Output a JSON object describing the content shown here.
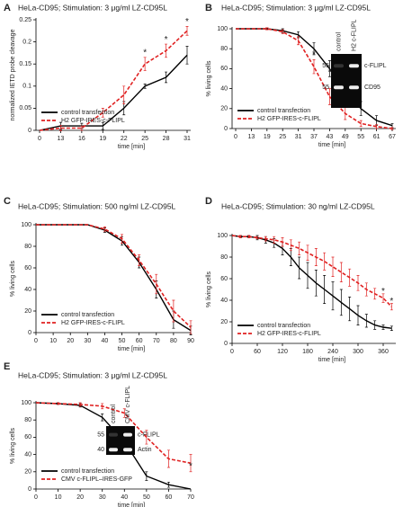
{
  "chart_data": [
    {
      "panel": "A",
      "type": "line",
      "title": "HeLa-CD95; Stimulation: 3 μg/ml LZ-CD95L",
      "xlabel": "time [min]",
      "ylabel": "normalized IETD probe cleavage",
      "categories": [
        "0",
        "13",
        "16",
        "19",
        "22",
        "25",
        "28",
        "31"
      ],
      "ylim": [
        0,
        0.25
      ],
      "yticks": [
        0,
        0.05,
        0.1,
        0.15,
        0.2,
        0.25
      ],
      "legend": "lower left",
      "series": [
        {
          "name": "control transfection",
          "color": "#000000",
          "dash": false,
          "values": [
            0,
            0.01,
            0.01,
            0.01,
            0.05,
            0.1,
            0.12,
            0.17
          ],
          "errors": [
            0,
            0.008,
            0.006,
            0.008,
            0.015,
            0.005,
            0.012,
            0.02
          ]
        },
        {
          "name": "H2 GFP-IRES-c-FLIPL",
          "color": "#e02020",
          "dash": true,
          "values": [
            0,
            0.005,
            0.005,
            0.04,
            0.08,
            0.15,
            0.18,
            0.225
          ],
          "errors": [
            0,
            0.006,
            0.005,
            0.01,
            0.02,
            0.015,
            0.015,
            0.01
          ]
        }
      ],
      "annotations": [
        {
          "text": "*",
          "x": "25",
          "y": 0.175
        },
        {
          "text": "*",
          "x": "28",
          "y": 0.205
        },
        {
          "text": "*",
          "x": "31",
          "y": 0.245
        }
      ]
    },
    {
      "panel": "B",
      "type": "line",
      "title": "HeLa-CD95; Stimulation: 3 μg/ml LZ-CD95L",
      "xlabel": "time [min]",
      "ylabel": "% living cells",
      "categories": [
        "0",
        "13",
        "19",
        "25",
        "31",
        "37",
        "43",
        "49",
        "55",
        "61",
        "67"
      ],
      "ylim": [
        0,
        100
      ],
      "yticks": [
        0,
        20,
        40,
        60,
        80,
        100
      ],
      "legend": "lower left",
      "series": [
        {
          "name": "control transfection",
          "color": "#000000",
          "dash": false,
          "values": [
            100,
            100,
            100,
            98,
            94,
            80,
            60,
            38,
            20,
            8,
            3
          ],
          "errors": [
            0,
            0,
            1,
            2,
            3,
            6,
            8,
            8,
            7,
            5,
            2
          ]
        },
        {
          "name": "H2 GFP-IRES-c-FLIPL",
          "color": "#e02020",
          "dash": true,
          "values": [
            100,
            100,
            100,
            97,
            88,
            62,
            32,
            15,
            5,
            2,
            0
          ],
          "errors": [
            0,
            0,
            1,
            2,
            4,
            7,
            8,
            6,
            3,
            2,
            1
          ]
        }
      ],
      "annotations": [
        {
          "text": "*",
          "x": "37",
          "y": 74
        },
        {
          "text": "*",
          "x": "43",
          "y": 56
        }
      ],
      "inset": {
        "lanes": [
          "control",
          "H2 c-FLIPL"
        ],
        "rows": [
          {
            "marker": "55",
            "label": "c-FLIPL"
          },
          {
            "marker": "55",
            "label": "CD95"
          }
        ]
      }
    },
    {
      "panel": "C",
      "type": "line",
      "title": "HeLa-CD95; Stimulation: 500 ng/ml LZ-CD95L",
      "xlabel": "time [min]",
      "ylabel": "% living cells",
      "x": [
        0,
        10,
        20,
        30,
        40,
        50,
        60,
        70,
        80,
        90
      ],
      "xlim": [
        0,
        90
      ],
      "xticks": [
        0,
        10,
        20,
        30,
        40,
        50,
        60,
        70,
        80,
        90
      ],
      "ylim": [
        0,
        100
      ],
      "yticks": [
        0,
        20,
        40,
        60,
        80,
        100
      ],
      "legend": "lower left",
      "series": [
        {
          "name": "control transfection",
          "color": "#000000",
          "dash": false,
          "values": [
            100,
            100,
            100,
            100,
            95,
            85,
            65,
            40,
            12,
            2
          ],
          "errors": [
            0,
            0,
            0,
            0,
            2,
            4,
            5,
            8,
            8,
            4
          ]
        },
        {
          "name": "H2 GFP-IRES-c-FLIPL",
          "color": "#e02020",
          "dash": true,
          "values": [
            100,
            100,
            100,
            100,
            96,
            87,
            67,
            45,
            20,
            5
          ],
          "errors": [
            0,
            0,
            0,
            0,
            2,
            4,
            5,
            9,
            10,
            6
          ]
        }
      ]
    },
    {
      "panel": "D",
      "type": "line",
      "title": "HeLa-CD95; Stimulation: 30 ng/ml LZ-CD95L",
      "xlabel": "time [min]",
      "ylabel": "% living cells",
      "x": [
        0,
        20,
        40,
        60,
        80,
        100,
        120,
        140,
        160,
        180,
        200,
        220,
        240,
        260,
        280,
        300,
        320,
        340,
        360,
        380
      ],
      "xlim": [
        0,
        390
      ],
      "xticks": [
        0,
        60,
        120,
        180,
        240,
        300,
        360
      ],
      "ylim": [
        0,
        100
      ],
      "yticks": [
        0,
        20,
        40,
        60,
        80,
        100
      ],
      "legend": "lower left",
      "series": [
        {
          "name": "control transfection",
          "color": "#000000",
          "dash": false,
          "values": [
            100,
            99,
            99,
            98,
            96,
            93,
            88,
            80,
            70,
            63,
            56,
            50,
            44,
            38,
            32,
            26,
            21,
            17,
            15,
            14
          ],
          "errors": [
            0,
            1,
            1,
            2,
            3,
            4,
            6,
            8,
            10,
            12,
            12,
            13,
            13,
            12,
            11,
            9,
            6,
            4,
            2,
            2
          ]
        },
        {
          "name": "H2 GFP-IRES-c-FLIPL",
          "color": "#e02020",
          "dash": true,
          "values": [
            100,
            99,
            99,
            98,
            97,
            96,
            94,
            91,
            88,
            84,
            80,
            76,
            71,
            66,
            61,
            56,
            50,
            46,
            42,
            34
          ],
          "errors": [
            0,
            1,
            1,
            1,
            2,
            3,
            4,
            5,
            6,
            7,
            8,
            8,
            9,
            9,
            8,
            7,
            6,
            5,
            4,
            3
          ]
        }
      ],
      "annotations": [
        {
          "text": "*",
          "x": 360,
          "y": 48
        },
        {
          "text": "*",
          "x": 380,
          "y": 39
        }
      ]
    },
    {
      "panel": "E",
      "type": "line",
      "title": "HeLa-CD95; Stimulation: 3 μg/ml LZ-CD95L",
      "xlabel": "time [min]",
      "ylabel": "% living cells",
      "x": [
        0,
        10,
        20,
        30,
        40,
        50,
        60,
        70
      ],
      "xlim": [
        0,
        70
      ],
      "xticks": [
        0,
        10,
        20,
        30,
        40,
        50,
        60,
        70
      ],
      "ylim": [
        0,
        100
      ],
      "yticks": [
        0,
        20,
        40,
        60,
        80,
        100
      ],
      "legend": "lower left",
      "series": [
        {
          "name": "control transfection",
          "color": "#000000",
          "dash": false,
          "values": [
            100,
            99,
            97,
            83,
            55,
            15,
            5,
            0
          ],
          "errors": [
            0,
            1,
            2,
            4,
            6,
            5,
            3,
            0
          ]
        },
        {
          "name": "CMV c-FLIPL–IRES-GFP",
          "color": "#e02020",
          "dash": true,
          "values": [
            100,
            99,
            98,
            96,
            88,
            60,
            35,
            30
          ],
          "errors": [
            0,
            1,
            2,
            3,
            5,
            8,
            10,
            10
          ]
        }
      ],
      "annotations": [
        {
          "text": "*",
          "x": 70,
          "y": 26
        }
      ],
      "inset": {
        "lanes": [
          "control",
          "CMV c-FLIPL"
        ],
        "rows": [
          {
            "marker": "55",
            "label": "c-FLIPL"
          },
          {
            "marker": "40",
            "label": "Actin"
          }
        ]
      }
    }
  ]
}
